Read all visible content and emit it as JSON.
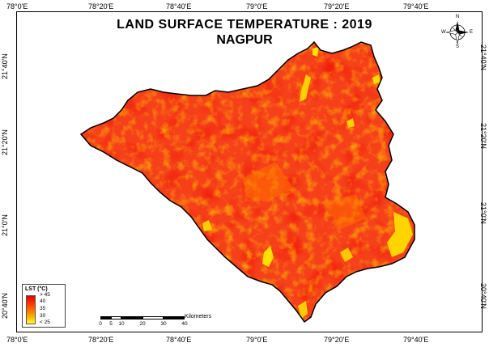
{
  "map": {
    "title_line1": "LAND SURFACE TEMPERATURE : 2019",
    "title_line2": "NAGPUR",
    "longitude_ticks": [
      "78°0'E",
      "78°20'E",
      "78°40'E",
      "79°0'E",
      "79°20'E",
      "79°40'E"
    ],
    "latitude_ticks_left": [
      "21°40'N",
      "21°20'N",
      "21°0'N",
      "20°40'N"
    ],
    "latitude_ticks_right": [
      "21°40'N",
      "21°20'N",
      "21°0'N",
      "20°40'N"
    ],
    "colors": {
      "region_base": "#f5401a",
      "hot": "#e60000",
      "warm": "#ff7a00",
      "cool": "#ffd800",
      "outline": "#000000"
    }
  },
  "legend": {
    "title": "LST (°C)",
    "labels": [
      "> 45",
      "40",
      "35",
      "30",
      "< 25"
    ]
  },
  "scale_bar": {
    "labels": [
      "0",
      "5",
      "10",
      "20",
      "30",
      "40"
    ],
    "unit": "Kilometers"
  },
  "north_arrow": {
    "labels": {
      "n": "N",
      "s": "S",
      "e": "E",
      "w": "W"
    }
  }
}
